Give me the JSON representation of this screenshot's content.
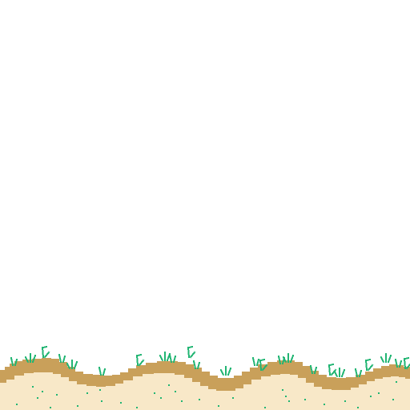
{
  "scene": {
    "background_color": "#ffffff",
    "ground": {
      "dirt_color": "#c9a05a",
      "sand_color": "#f8e8c8"
    },
    "grass": {
      "color": "#22b573",
      "tuft_icon": "grass-tuft-icon"
    },
    "speckles": {
      "color": "#22b573",
      "icon": "seed-speck-icon"
    }
  }
}
